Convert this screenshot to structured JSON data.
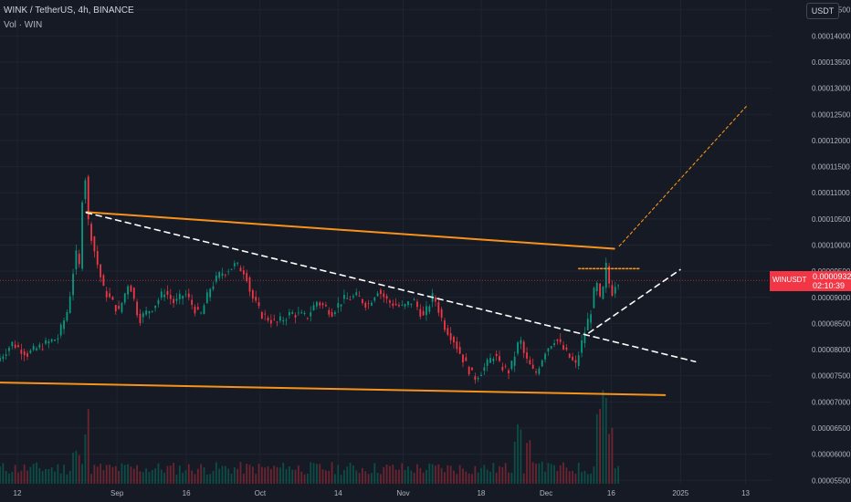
{
  "header": {
    "symbol_line": "WINK / TetherUS, 4h, BINANCE",
    "volume_line": "Vol · WIN"
  },
  "currency_button": "USDT",
  "price_badge": {
    "symbol": "WINUSDT",
    "price": "0.00009325",
    "countdown": "02:10:39"
  },
  "colors": {
    "background": "#161a25",
    "up": "#089981",
    "down": "#f23645",
    "trendline": "#f7931a",
    "dashed": "#ffffff"
  },
  "chart_data": {
    "type": "candlestick",
    "title": "",
    "price_axis": {
      "ticks": [
        "0.00014500",
        "0.00014000",
        "0.00013500",
        "0.00013000",
        "0.00012500",
        "0.00012000",
        "0.00011500",
        "0.00011000",
        "0.00010500",
        "0.00010000",
        "0.00009500",
        "0.00009000",
        "0.00008500",
        "0.00008000",
        "0.00007500",
        "0.00007000",
        "0.00006500",
        "0.00006000",
        "0.00005500"
      ],
      "ylim": [
        5.33e-05,
        0.000146
      ]
    },
    "time_axis": {
      "ticks": [
        "12",
        "Sep",
        "16",
        "Oct",
        "14",
        "Nov",
        "18",
        "Dec",
        "16",
        "2025",
        "13"
      ],
      "day_range": [
        0,
        152
      ]
    },
    "price_series": [
      [
        0,
        7.78e-05
      ],
      [
        3,
        8.12e-05
      ],
      [
        6,
        7.92e-05
      ],
      [
        9,
        8.08e-05
      ],
      [
        12,
        8.23e-05
      ],
      [
        14,
        8.78e-05
      ],
      [
        15.5,
        9.85e-05
      ],
      [
        16.5,
        9.48e-05
      ],
      [
        17,
        0.0001185
      ],
      [
        18,
        0.0001045
      ],
      [
        19.5,
        9.75e-05
      ],
      [
        21,
        9.15e-05
      ],
      [
        24,
        8.72e-05
      ],
      [
        26,
        9.32e-05
      ],
      [
        28,
        8.58e-05
      ],
      [
        31,
        8.85e-05
      ],
      [
        33,
        9.12e-05
      ],
      [
        35,
        8.88e-05
      ],
      [
        37,
        9.08e-05
      ],
      [
        40,
        8.62e-05
      ],
      [
        42,
        9.18e-05
      ],
      [
        44,
        9.45e-05
      ],
      [
        47,
        9.62e-05
      ],
      [
        49,
        9.48e-05
      ],
      [
        50,
        9.05e-05
      ],
      [
        52,
        8.68e-05
      ],
      [
        55,
        8.5e-05
      ],
      [
        58,
        8.7e-05
      ],
      [
        61,
        8.62e-05
      ],
      [
        63,
        8.92e-05
      ],
      [
        66,
        8.72e-05
      ],
      [
        68,
        8.95e-05
      ],
      [
        71,
        9.02e-05
      ],
      [
        73,
        8.85e-05
      ],
      [
        75,
        9.15e-05
      ],
      [
        77,
        8.92e-05
      ],
      [
        80,
        8.8e-05
      ],
      [
        82,
        8.95e-05
      ],
      [
        84,
        8.62e-05
      ],
      [
        86,
        9.05e-05
      ],
      [
        88,
        8.48e-05
      ],
      [
        90,
        8.18e-05
      ],
      [
        92,
        7.78e-05
      ],
      [
        94,
        7.45e-05
      ],
      [
        96,
        7.65e-05
      ],
      [
        98,
        7.92e-05
      ],
      [
        99,
        7.7e-05
      ],
      [
        101,
        7.58e-05
      ],
      [
        103,
        8.22e-05
      ],
      [
        104,
        7.85e-05
      ],
      [
        106,
        7.52e-05
      ],
      [
        108,
        7.98e-05
      ],
      [
        110,
        8.22e-05
      ],
      [
        112,
        7.95e-05
      ],
      [
        114,
        7.7e-05
      ],
      [
        116,
        8.42e-05
      ],
      [
        117,
        8.75e-05
      ],
      [
        118,
        9.32e-05
      ],
      [
        119,
        8.85e-05
      ],
      [
        120,
        9.6e-05
      ],
      [
        121,
        9.05e-05
      ],
      [
        122,
        9.32e-05
      ]
    ],
    "volume_peaks": [
      [
        17,
        0.72
      ],
      [
        15,
        0.35
      ],
      [
        57,
        0.18
      ],
      [
        102,
        0.55
      ],
      [
        104,
        0.45
      ],
      [
        106,
        0.3
      ],
      [
        118,
        0.85
      ],
      [
        119,
        1.0
      ],
      [
        120,
        0.6
      ]
    ],
    "drawings": [
      {
        "name": "upper-trendline",
        "style": "solid",
        "from": [
          17,
          0.0001063
        ],
        "to": [
          121,
          9.93e-05
        ]
      },
      {
        "name": "lower-trendline",
        "style": "solid",
        "from": [
          0,
          7.37e-05
        ],
        "to": [
          131,
          7.13e-05
        ]
      },
      {
        "name": "dashed-descending-line",
        "style": "dashed",
        "from": [
          17,
          0.0001062
        ],
        "to": [
          137,
          7.77e-05
        ]
      },
      {
        "name": "dashed-breakout-line",
        "style": "dashed",
        "from": [
          116,
          8.32e-05
        ],
        "to": [
          134,
          9.53e-05
        ]
      },
      {
        "name": "dotted-projection-line",
        "style": "dashed",
        "from": [
          122,
          9.98e-05
        ],
        "to": [
          147,
          0.0001265
        ]
      },
      {
        "name": "dotted-level",
        "style": "dotted",
        "from": [
          114,
          9.55e-05
        ],
        "to": [
          126,
          9.55e-05
        ]
      }
    ],
    "last_price": 9.325e-05
  }
}
